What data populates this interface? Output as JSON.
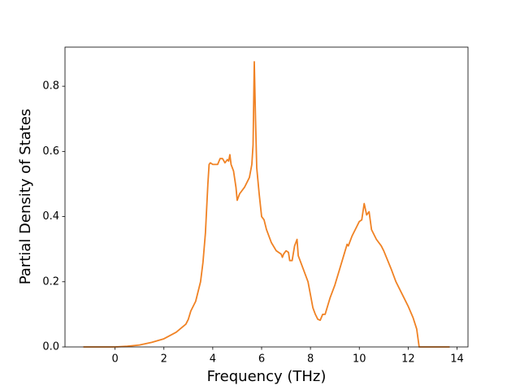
{
  "chart_data": {
    "type": "line",
    "xlabel": "Frequency (THz)",
    "ylabel": "Partial Density of States",
    "color": "#f08224",
    "x": [
      -1.3,
      0,
      0.5,
      1,
      1.5,
      2,
      2.5,
      2.9,
      3.0,
      3.1,
      3.3,
      3.5,
      3.6,
      3.7,
      3.8,
      3.85,
      3.9,
      4.0,
      4.2,
      4.3,
      4.4,
      4.5,
      4.6,
      4.65,
      4.7,
      4.75,
      4.85,
      4.95,
      5.0,
      5.1,
      5.3,
      5.5,
      5.6,
      5.65,
      5.7,
      5.75,
      5.8,
      5.9,
      6.0,
      6.1,
      6.2,
      6.4,
      6.6,
      6.8,
      6.85,
      6.9,
      7.0,
      7.1,
      7.15,
      7.25,
      7.35,
      7.45,
      7.5,
      7.7,
      7.9,
      8.0,
      8.1,
      8.2,
      8.3,
      8.4,
      8.5,
      8.6,
      8.8,
      9.0,
      9.2,
      9.4,
      9.5,
      9.55,
      9.7,
      9.9,
      10.0,
      10.1,
      10.2,
      10.3,
      10.4,
      10.5,
      10.7,
      10.9,
      11.0,
      11.3,
      11.5,
      11.8,
      12.0,
      12.2,
      12.35,
      12.45,
      13.7
    ],
    "values": [
      0,
      0,
      0.002,
      0.006,
      0.014,
      0.025,
      0.045,
      0.07,
      0.085,
      0.11,
      0.14,
      0.2,
      0.26,
      0.35,
      0.5,
      0.56,
      0.565,
      0.56,
      0.56,
      0.578,
      0.578,
      0.565,
      0.575,
      0.57,
      0.59,
      0.56,
      0.54,
      0.49,
      0.45,
      0.47,
      0.49,
      0.52,
      0.56,
      0.62,
      0.875,
      0.7,
      0.55,
      0.47,
      0.4,
      0.39,
      0.36,
      0.32,
      0.295,
      0.285,
      0.275,
      0.285,
      0.295,
      0.29,
      0.265,
      0.265,
      0.31,
      0.33,
      0.28,
      0.24,
      0.2,
      0.16,
      0.12,
      0.1,
      0.085,
      0.082,
      0.1,
      0.1,
      0.15,
      0.19,
      0.24,
      0.29,
      0.315,
      0.31,
      0.34,
      0.37,
      0.385,
      0.39,
      0.44,
      0.405,
      0.415,
      0.36,
      0.33,
      0.31,
      0.295,
      0.24,
      0.2,
      0.155,
      0.125,
      0.09,
      0.055,
      0,
      0
    ],
    "xlim": [
      -2.05,
      14.45
    ],
    "xticks": [
      0,
      2,
      4,
      6,
      8,
      10,
      12,
      14
    ],
    "ylim": [
      0,
      0.92
    ],
    "yticks": [
      {
        "value": 0,
        "label": "0.0"
      },
      0.2,
      0.4,
      0.6,
      0.8
    ]
  }
}
